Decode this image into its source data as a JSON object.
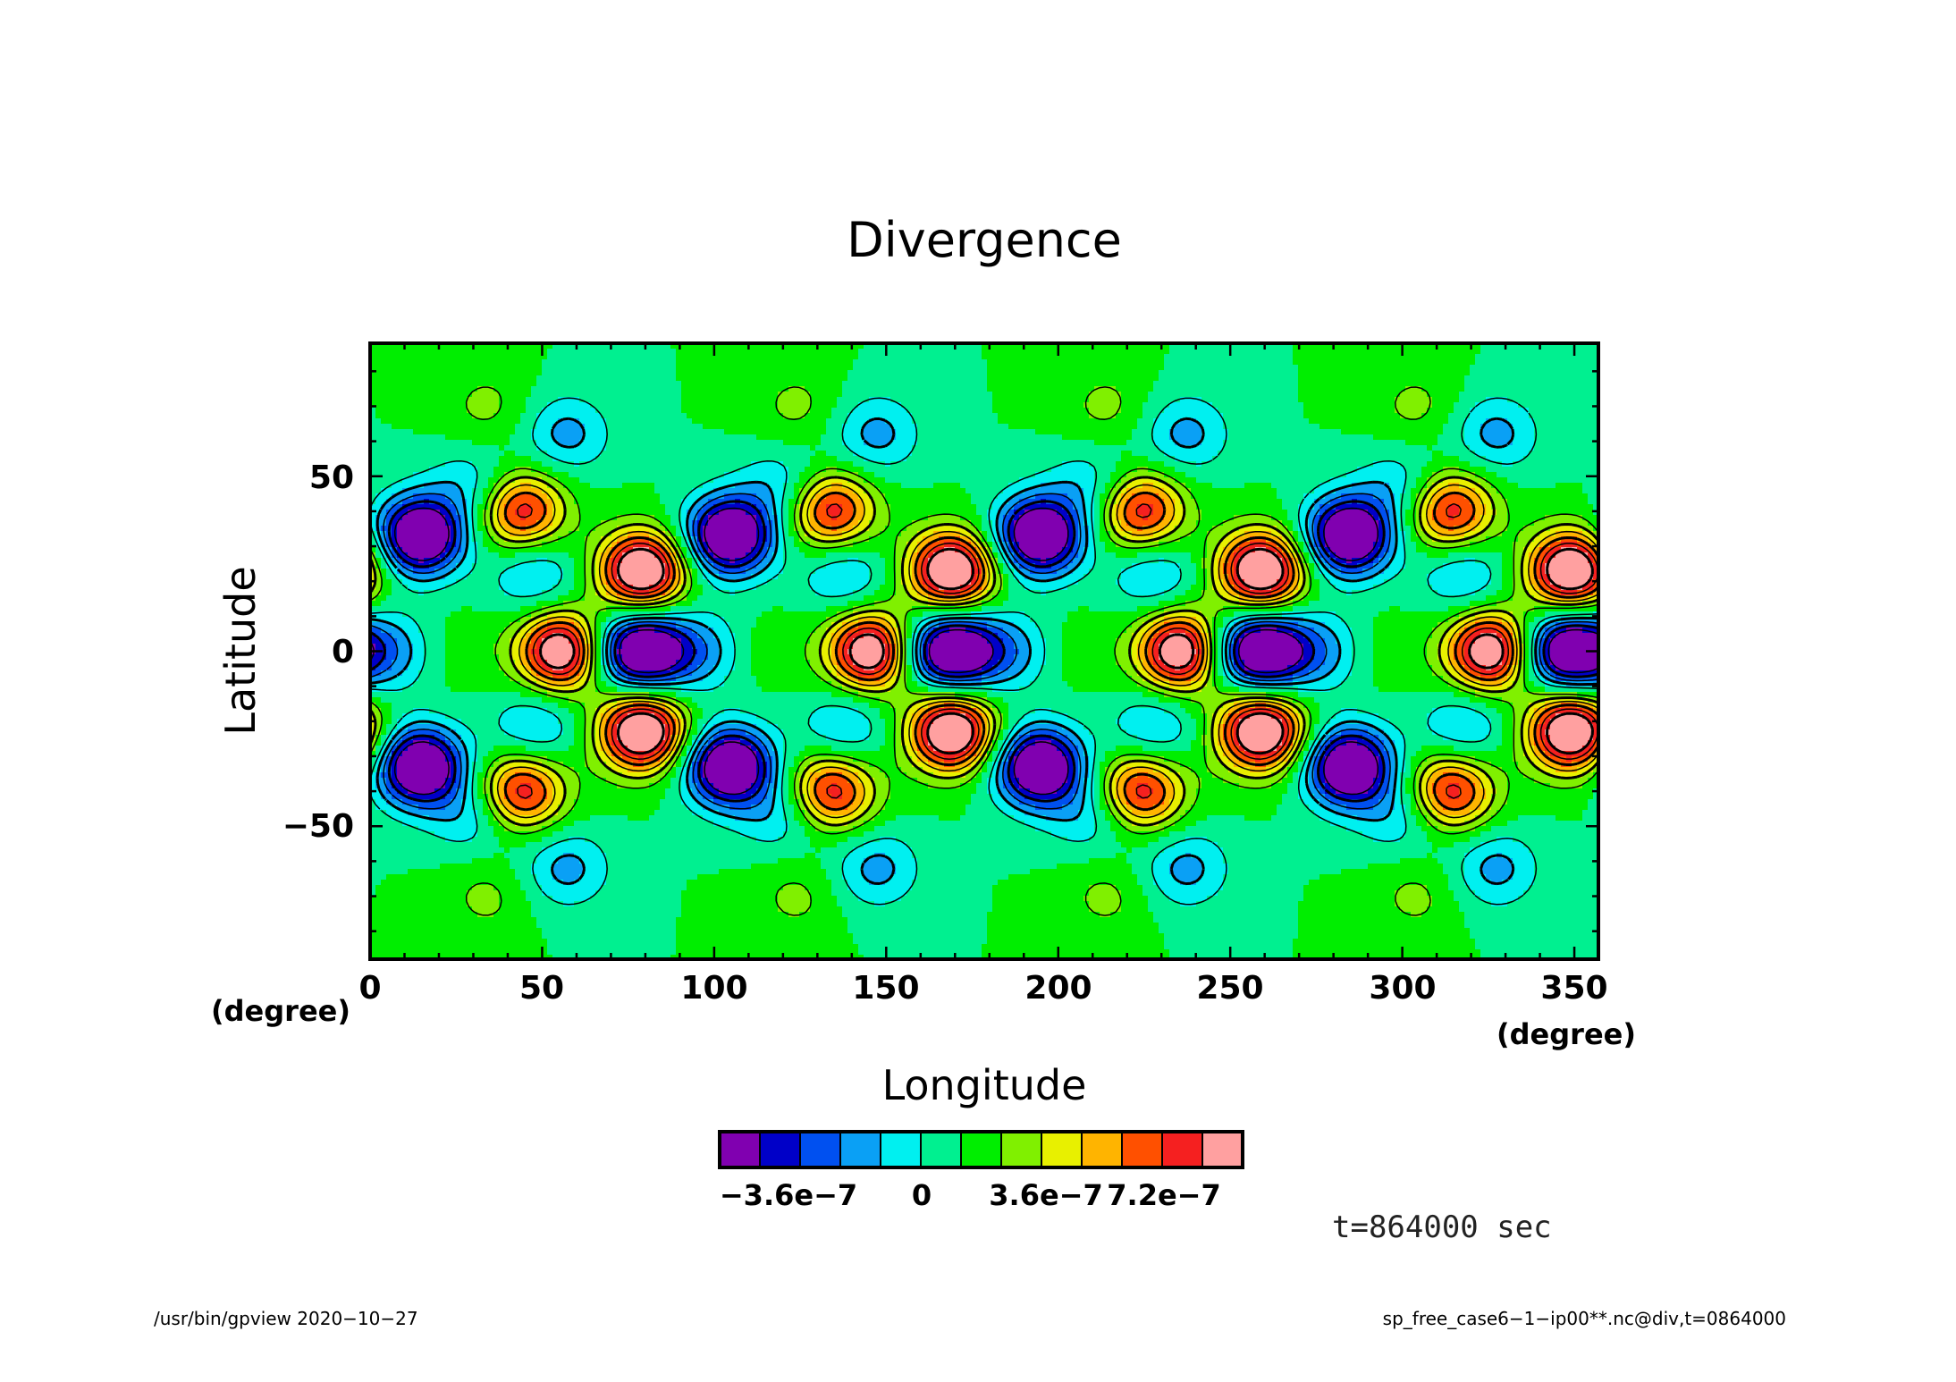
{
  "chart_data": {
    "type": "heatmap",
    "title": "Divergence",
    "xlabel": "Longitude",
    "ylabel": "Latitude",
    "x_unit": "(degree)",
    "y_unit": "(degree)",
    "xlim": [
      0,
      357
    ],
    "ylim": [
      -88,
      88
    ],
    "x_ticks": [
      0,
      50,
      100,
      150,
      200,
      250,
      300,
      350
    ],
    "x_tick_labels": [
      "0",
      "50",
      "100",
      "150",
      "200",
      "250",
      "300",
      "350"
    ],
    "y_ticks": [
      -50,
      0,
      50
    ],
    "y_tick_labels": [
      "−50",
      "0",
      "50"
    ],
    "wavenumber": 4,
    "features": [
      {
        "lon": 44,
        "lat": 40,
        "amp": 5.8
      },
      {
        "lon": 44,
        "lat": -40,
        "amp": 5.8
      },
      {
        "lon": 79,
        "lat": 23,
        "amp": 8.3
      },
      {
        "lon": 79,
        "lat": -23,
        "amp": 8.3
      },
      {
        "lon": 56,
        "lat": 0,
        "amp": 8.3
      },
      {
        "lon": 79,
        "lat": 0,
        "amp": -6.8
      },
      {
        "lon": 15,
        "lat": 33,
        "amp": -3.8
      },
      {
        "lon": 15,
        "lat": -33,
        "amp": -3.8
      },
      {
        "lon": 104,
        "lat": 33,
        "amp": -3.8
      },
      {
        "lon": 104,
        "lat": -33,
        "amp": -3.8
      },
      {
        "lon": 57,
        "lat": 62,
        "amp": -2.4
      },
      {
        "lon": 57,
        "lat": -62,
        "amp": -2.4
      },
      {
        "lon": 48,
        "lat": 22,
        "amp": -2.4
      },
      {
        "lon": 48,
        "lat": -22,
        "amp": -2.4
      },
      {
        "lon": 91,
        "lat": 0,
        "amp": -1.6
      },
      {
        "lon": 67,
        "lat": 0,
        "amp": -1.6
      },
      {
        "lon": 30,
        "lat": 47,
        "amp": -2.0
      },
      {
        "lon": 30,
        "lat": -47,
        "amp": -2.0
      },
      {
        "lon": 11,
        "lat": 0,
        "amp": -1.4
      },
      {
        "lon": 23,
        "lat": 0,
        "amp": 0.9
      },
      {
        "lon": 34,
        "lat": 70,
        "amp": 1.3
      },
      {
        "lon": 34,
        "lat": -70,
        "amp": 1.3
      }
    ],
    "colorbar": {
      "colors": [
        "#8000b0",
        "#0000c8",
        "#0050f0",
        "#0aa0f5",
        "#00f0f0",
        "#00f090",
        "#00ee00",
        "#80f000",
        "#e8f000",
        "#ffb400",
        "#ff5000",
        "#f52020",
        "#ffa0a0"
      ],
      "tick_labels": [
        "−3.6e−7",
        "0",
        "3.6e−7",
        "7.2e−7"
      ]
    }
  },
  "time_label": "t=864000 sec",
  "footer": {
    "left": "/usr/bin/gpview   2020−10−27",
    "right": "sp_free_case6−1−ip00**.nc@div,t=0864000"
  }
}
